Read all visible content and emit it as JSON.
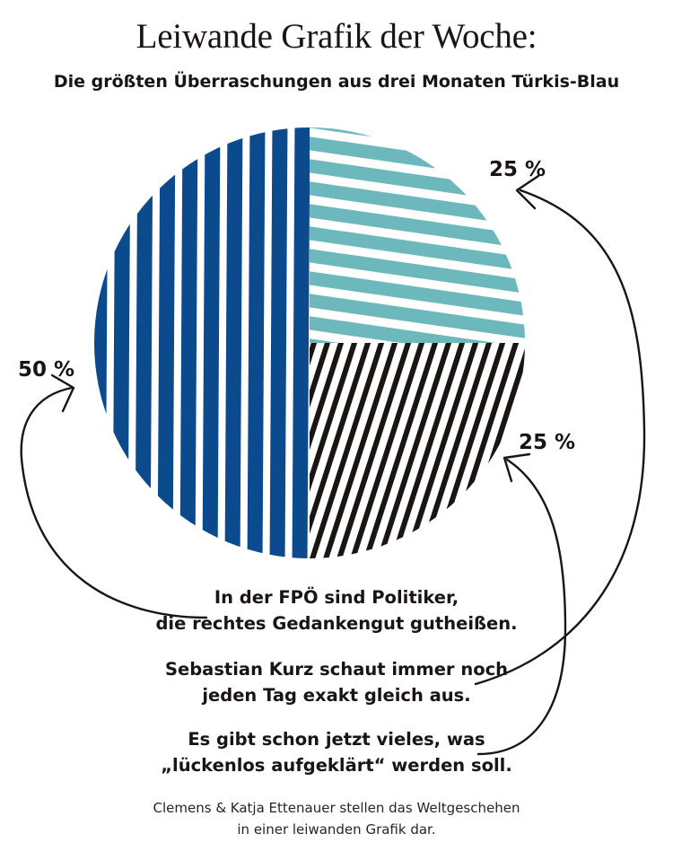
{
  "title": "Leiwande Grafik der Woche:",
  "subtitle": "Die größten Überraschungen aus drei Monaten Türkis-Blau",
  "chart_data": {
    "type": "pie",
    "slices": [
      {
        "value": 50,
        "label": "50 %",
        "color": "#0b4a8c",
        "description": [
          "In der FPÖ sind Politiker,",
          "die rechtes Gedankengut gutheißen."
        ]
      },
      {
        "value": 25,
        "label": "25 %",
        "color": "#6db8bd",
        "description": [
          "Sebastian Kurz schaut immer noch",
          "jeden Tag exakt gleich aus."
        ]
      },
      {
        "value": 25,
        "label": "25 %",
        "color": "#1a1412",
        "description": [
          "Es gibt schon jetzt vieles, was",
          "„lückenlos aufgeklärt“ werden soll."
        ]
      }
    ]
  },
  "credit": [
    "Clemens & Katja Ettenauer stellen das Weltgeschehen",
    "in einer leiwanden Grafik dar."
  ]
}
